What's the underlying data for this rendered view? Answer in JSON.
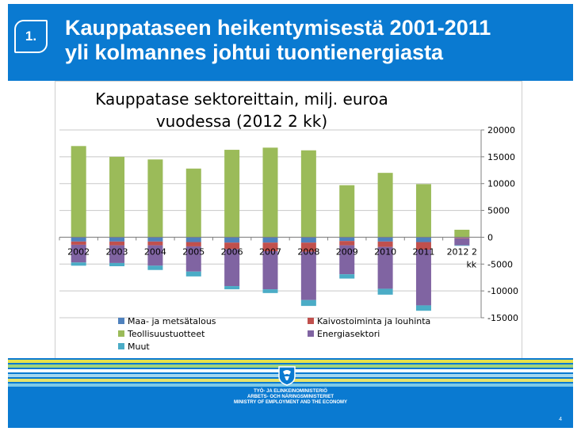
{
  "header": {
    "number": "1.",
    "title_line1": "Kauppataseen heikentymisestä 2001-2011",
    "title_line2": "yli kolmannes johtui tuontienergiasta"
  },
  "chart_data": {
    "type": "bar",
    "stacked": true,
    "title": "Kauppatase sektoreittain, milj. euroa vuodessa (2012 2 kk)",
    "title_line1": "Kauppatase sektoreittain, milj. euroa",
    "title_line2": "vuodessa (2012 2 kk)",
    "categories": [
      "2002",
      "2003",
      "2004",
      "2005",
      "2006",
      "2007",
      "2008",
      "2009",
      "2010",
      "2011",
      "2012 2 kk"
    ],
    "ylim": [
      -15000,
      20000
    ],
    "yticks": [
      20000,
      15000,
      10000,
      5000,
      0,
      -5000,
      -10000,
      -15000
    ],
    "y_axis_side": "right",
    "grid": true,
    "legend_position": "bottom",
    "series": [
      {
        "name": "Maa- ja metsätalous",
        "color": "#4f81bd",
        "values": [
          -800,
          -800,
          -800,
          -900,
          -1000,
          -1000,
          -1000,
          -700,
          -800,
          -900,
          -100
        ]
      },
      {
        "name": "Kaivostoiminta ja louhinta",
        "color": "#c0504d",
        "values": [
          -600,
          -700,
          -700,
          -800,
          -1200,
          -1600,
          -1700,
          -800,
          -1000,
          -1400,
          -100
        ]
      },
      {
        "name": "Teollisuustuotteet",
        "color": "#9bbb59",
        "values": [
          17000,
          15000,
          14500,
          12800,
          16300,
          16700,
          16200,
          9700,
          12000,
          9900,
          1400
        ]
      },
      {
        "name": "Energiasektori",
        "color": "#8064a2",
        "values": [
          -3300,
          -3300,
          -3800,
          -4700,
          -6900,
          -7100,
          -9000,
          -5400,
          -7800,
          -10400,
          -1300
        ]
      },
      {
        "name": "Muut",
        "color": "#4bacc6",
        "values": [
          -600,
          -600,
          -800,
          -900,
          -600,
          -700,
          -1100,
          -800,
          -1100,
          -1000,
          -100
        ]
      }
    ]
  },
  "footer": {
    "ministry_line1": "TYÖ- JA ELINKEINOMINISTERIÖ",
    "ministry_line2": "ARBETS- OCH NÄRINGSMINISTERIET",
    "ministry_line3": "MINISTRY OF EMPLOYMENT AND THE ECONOMY",
    "page_number": "4"
  }
}
